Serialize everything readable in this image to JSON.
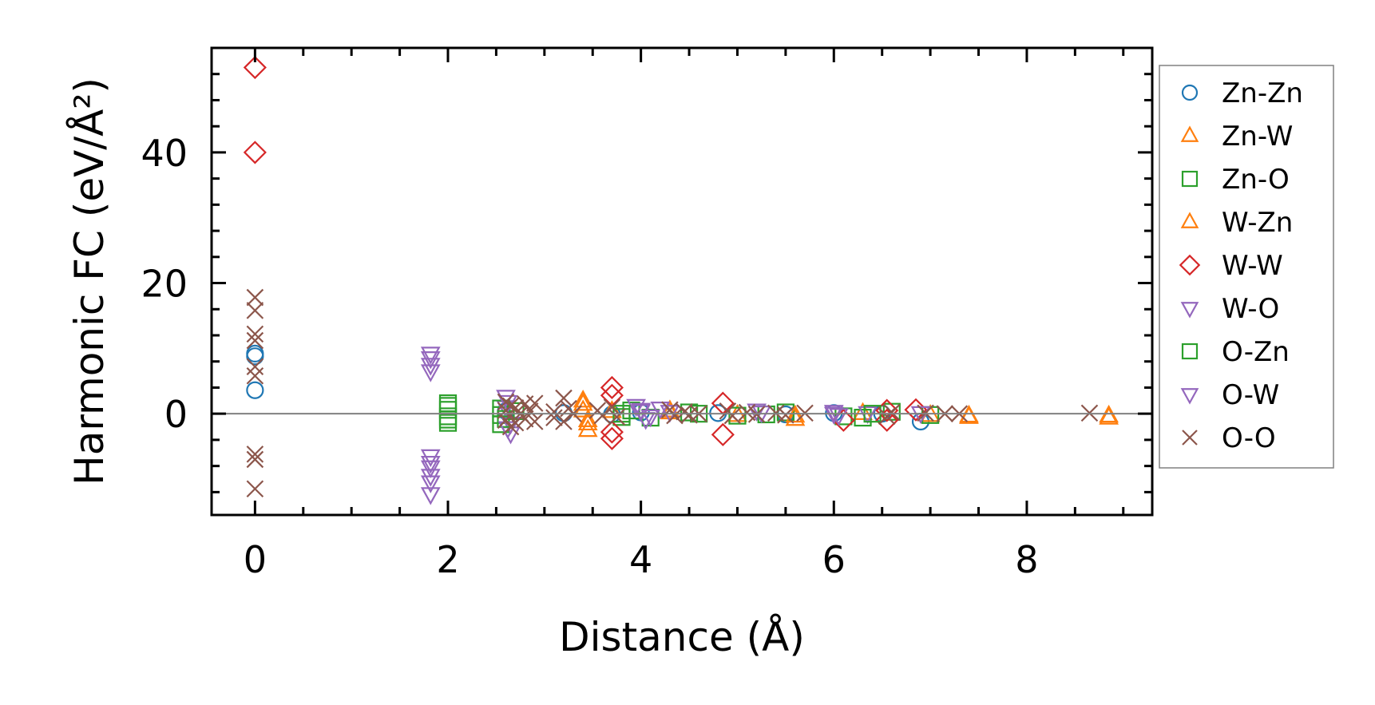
{
  "chart_data": {
    "type": "scatter",
    "title": "",
    "xlabel": "Distance (Å)",
    "ylabel": "Harmonic FC (eV/Å²)",
    "xlim": [
      -0.45,
      9.3
    ],
    "ylim": [
      -15.5,
      56
    ],
    "xticks": [
      0,
      2,
      4,
      6,
      8
    ],
    "yticks": [
      0,
      20,
      40
    ],
    "grid": false,
    "legend_position": "outside-right",
    "reference_line_y": 0,
    "series": [
      {
        "name": "Zn-Zn",
        "marker": "circle",
        "color": "#1f77b4",
        "points": [
          [
            0,
            9.2
          ],
          [
            0,
            8.8
          ],
          [
            0,
            3.6
          ],
          [
            2.6,
            0.4
          ],
          [
            3.2,
            0.1
          ],
          [
            3.7,
            -0.1
          ],
          [
            4.0,
            0.2
          ],
          [
            4.8,
            0.1
          ],
          [
            5.5,
            -0.1
          ],
          [
            6.0,
            0.1
          ],
          [
            6.5,
            0.0
          ],
          [
            6.9,
            -1.2
          ]
        ]
      },
      {
        "name": "Zn-W",
        "marker": "triangle-up",
        "color": "#ff7f0e",
        "points": [
          [
            3.4,
            2.0
          ],
          [
            3.4,
            0.5
          ],
          [
            3.45,
            -1.5
          ],
          [
            3.45,
            -2.5
          ],
          [
            3.7,
            0.4
          ],
          [
            4.3,
            0.2
          ],
          [
            5.0,
            -0.2
          ],
          [
            5.6,
            -0.8
          ],
          [
            6.3,
            0.1
          ],
          [
            7.0,
            -0.2
          ],
          [
            7.4,
            -0.5
          ],
          [
            8.85,
            -0.6
          ]
        ]
      },
      {
        "name": "Zn-O",
        "marker": "square",
        "color": "#2ca02c",
        "points": [
          [
            2.0,
            1.6
          ],
          [
            2.0,
            0.6
          ],
          [
            2.0,
            -0.4
          ],
          [
            2.0,
            -1.4
          ],
          [
            2.55,
            -0.2
          ],
          [
            2.55,
            -1.6
          ],
          [
            2.7,
            0.4
          ],
          [
            3.8,
            -0.5
          ],
          [
            3.9,
            0.5
          ],
          [
            4.1,
            -0.6
          ],
          [
            4.5,
            0.2
          ],
          [
            5.0,
            -0.3
          ],
          [
            5.5,
            0.2
          ],
          [
            6.1,
            -0.4
          ],
          [
            6.3,
            -0.6
          ],
          [
            6.6,
            0.3
          ],
          [
            7.0,
            -0.2
          ]
        ]
      },
      {
        "name": "W-Zn",
        "marker": "triangle-up",
        "color": "#ff7f0e",
        "points": [
          [
            3.4,
            1.5
          ],
          [
            3.45,
            -1.0
          ],
          [
            4.3,
            0.5
          ],
          [
            5.6,
            -0.3
          ],
          [
            7.4,
            -0.3
          ],
          [
            8.85,
            -0.3
          ]
        ]
      },
      {
        "name": "W-W",
        "marker": "diamond",
        "color": "#d62728",
        "points": [
          [
            0,
            53
          ],
          [
            0,
            40
          ],
          [
            3.7,
            4.0
          ],
          [
            3.7,
            2.8
          ],
          [
            3.7,
            -2.8
          ],
          [
            3.7,
            -3.8
          ],
          [
            4.85,
            1.6
          ],
          [
            4.85,
            -3.2
          ],
          [
            6.1,
            -1.0
          ],
          [
            6.55,
            0.5
          ],
          [
            6.55,
            -1.0
          ],
          [
            6.85,
            0.6
          ]
        ]
      },
      {
        "name": "W-O",
        "marker": "triangle-down",
        "color": "#9467bd",
        "points": [
          [
            1.82,
            9.2
          ],
          [
            1.82,
            8.5
          ],
          [
            1.82,
            6.5
          ],
          [
            1.82,
            -6.5
          ],
          [
            1.82,
            -8.2
          ],
          [
            1.82,
            -9.5
          ],
          [
            1.82,
            -10.5
          ],
          [
            1.82,
            -12.3
          ],
          [
            2.6,
            2.6
          ],
          [
            2.6,
            1.0
          ],
          [
            2.65,
            -1.5
          ],
          [
            2.65,
            -3.0
          ],
          [
            3.95,
            1.2
          ],
          [
            4.0,
            0.4
          ],
          [
            4.05,
            -0.8
          ],
          [
            4.2,
            0.8
          ],
          [
            4.3,
            0.3
          ],
          [
            5.2,
            0.5
          ],
          [
            6.0,
            0.3
          ],
          [
            6.05,
            -0.2
          ],
          [
            6.35,
            0.1
          ],
          [
            6.9,
            0.1
          ]
        ]
      },
      {
        "name": "O-Zn",
        "marker": "square",
        "color": "#2ca02c",
        "points": [
          [
            2.0,
            1.2
          ],
          [
            2.0,
            -0.9
          ],
          [
            2.55,
            0.8
          ],
          [
            2.6,
            -0.8
          ],
          [
            3.8,
            0.0
          ],
          [
            4.6,
            0.0
          ],
          [
            5.3,
            -0.1
          ],
          [
            6.4,
            0.0
          ]
        ]
      },
      {
        "name": "O-W",
        "marker": "triangle-down",
        "color": "#9467bd",
        "points": [
          [
            1.82,
            7.5
          ],
          [
            1.82,
            -7.5
          ],
          [
            2.62,
            1.8
          ],
          [
            2.62,
            -2.2
          ],
          [
            4.0,
            0.6
          ],
          [
            4.1,
            -0.4
          ],
          [
            5.25,
            0.2
          ],
          [
            6.0,
            0.0
          ]
        ]
      },
      {
        "name": "O-O",
        "marker": "x",
        "color": "#8c564b",
        "points": [
          [
            0,
            17.8
          ],
          [
            0,
            15.8
          ],
          [
            0,
            12.2
          ],
          [
            0,
            11.2
          ],
          [
            0,
            7.2
          ],
          [
            0,
            5.8
          ],
          [
            0,
            -6.2
          ],
          [
            0,
            -7.0
          ],
          [
            0,
            -11.5
          ],
          [
            2.6,
            1.8
          ],
          [
            2.6,
            0.5
          ],
          [
            2.6,
            -1.0
          ],
          [
            2.65,
            1.2
          ],
          [
            2.65,
            -2.0
          ],
          [
            2.7,
            0.9
          ],
          [
            2.7,
            -1.4
          ],
          [
            2.75,
            0.0
          ],
          [
            2.8,
            1.5
          ],
          [
            2.8,
            -0.8
          ],
          [
            2.85,
            0.4
          ],
          [
            2.9,
            -1.2
          ],
          [
            2.9,
            1.6
          ],
          [
            3.1,
            0.3
          ],
          [
            3.1,
            -0.6
          ],
          [
            3.2,
            2.4
          ],
          [
            3.2,
            -1.2
          ],
          [
            3.25,
            0.8
          ],
          [
            3.3,
            0.0
          ],
          [
            3.55,
            0.5
          ],
          [
            3.6,
            -0.3
          ],
          [
            3.7,
            1.0
          ],
          [
            3.75,
            -0.5
          ],
          [
            4.3,
            0.6
          ],
          [
            4.35,
            -0.3
          ],
          [
            4.45,
            0.3
          ],
          [
            4.5,
            -0.2
          ],
          [
            4.6,
            0.0
          ],
          [
            4.9,
            0.4
          ],
          [
            4.95,
            -0.3
          ],
          [
            5.1,
            0.2
          ],
          [
            5.2,
            -0.1
          ],
          [
            5.4,
            0.1
          ],
          [
            5.5,
            -0.2
          ],
          [
            5.7,
            0.1
          ],
          [
            6.55,
            -0.4
          ],
          [
            6.6,
            0.2
          ],
          [
            6.95,
            0.1
          ],
          [
            7.15,
            0.0
          ],
          [
            7.3,
            0.0
          ],
          [
            8.65,
            0.1
          ]
        ]
      }
    ]
  }
}
